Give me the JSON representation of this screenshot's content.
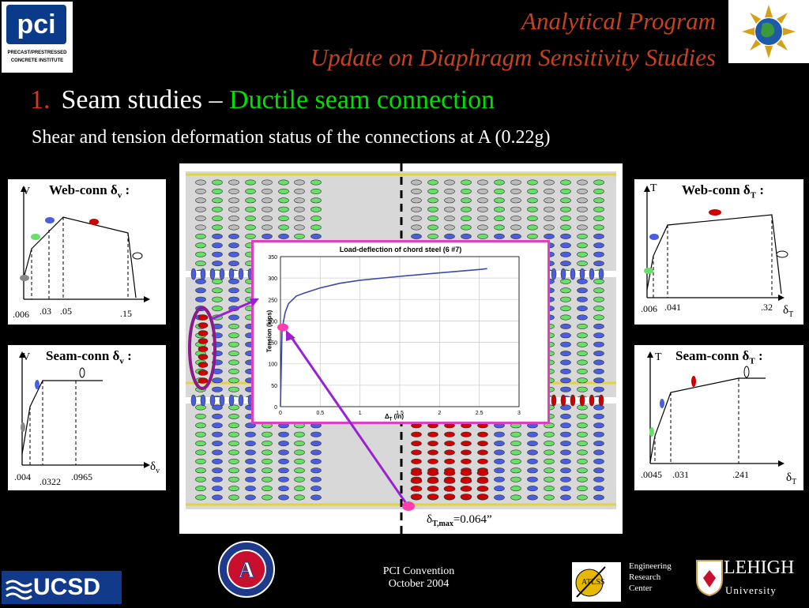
{
  "header": {
    "title_line1": "Analytical Program",
    "title_line2": "Update on Diaphragm Sensitivity Studies",
    "pci_logo_text": "pci",
    "pci_logo_caption1": "PRECAST/PRESTRESSED",
    "pci_logo_caption2": "CONCRETE INSTITUTE"
  },
  "heading": {
    "number": "1.",
    "text": "Seam studies –",
    "highlight": "Ductile seam connection"
  },
  "subheading": "Shear and tension deformation status of the connections at A (0.22g)",
  "panels": {
    "web_shear": {
      "label": "Web-conn δ",
      "sub": "v",
      "suffix": " :",
      "axis_y": "V",
      "ticks": [
        ".006",
        ".03",
        ".05",
        ".15"
      ]
    },
    "seam_shear": {
      "label": "Seam-conn δ",
      "sub": "v",
      "suffix": " :",
      "axis_y": "V",
      "axis_x": "δ",
      "axis_x_sub": "v",
      "ticks": [
        ".004",
        ".0322",
        ".0965"
      ]
    },
    "web_tension": {
      "label": "Web-conn δ",
      "sub": "T",
      "suffix": " :",
      "axis_y": "T",
      "axis_x": "δ",
      "axis_x_sub": "T",
      "ticks": [
        ".006",
        ".041",
        ".32"
      ]
    },
    "seam_tension": {
      "label": "Seam-conn δ",
      "sub": "T",
      "suffix": " :",
      "axis_y": "T",
      "axis_x": "δ",
      "axis_x_sub": "T",
      "ticks": [
        ".0045",
        ".031",
        ".241"
      ]
    }
  },
  "inset_chart": {
    "title": "Load-deflection of chord steel (6 #7)",
    "ylabel": "Tension (kips)",
    "xlabel": "Δ",
    "xlabel_sub": "T",
    "xlabel_unit": " (in)",
    "yticks": [
      "0",
      "50",
      "100",
      "150",
      "200",
      "250",
      "300",
      "350"
    ],
    "xticks": [
      "0",
      "0.5",
      "1",
      "1.5",
      "2",
      "2.5",
      "3"
    ]
  },
  "annotation": {
    "symbol": "δ",
    "sub": "T,max",
    "value": "=0.064”"
  },
  "chart_data": {
    "type": "line",
    "title": "Load-deflection of chord steel (6 #7)",
    "xlabel": "ΔT (in)",
    "ylabel": "Tension (kips)",
    "xlim": [
      0,
      3
    ],
    "ylim": [
      0,
      350
    ],
    "series": [
      {
        "values_x": [
          0,
          0.02,
          0.04,
          0.06,
          0.1,
          0.2,
          0.3,
          0.5,
          0.75,
          1.0,
          1.5,
          2.0,
          2.5,
          2.6
        ],
        "values_y": [
          0,
          180,
          200,
          220,
          240,
          258,
          265,
          277,
          288,
          295,
          304,
          312,
          320,
          322
        ]
      }
    ],
    "marker": {
      "x": 0.03,
      "y": 185
    }
  },
  "footer": {
    "ucsd": "UCSD",
    "convention_line1": "PCI Convention",
    "convention_line2": "October 2004",
    "erc_line1": "Engineering",
    "erc_line2": "Research",
    "erc_line3": "Center",
    "atlss": "ATLSS",
    "lehigh": "LEHIGH",
    "lehigh_sub": "University"
  },
  "colors": {
    "title": "#c8411e",
    "green": "#00e000",
    "inset_border": "#e040c0",
    "arrow": "#9b1fd6",
    "red_conn": "#d00000",
    "blue_conn": "#4a5fe0",
    "green_conn": "#66e066"
  }
}
